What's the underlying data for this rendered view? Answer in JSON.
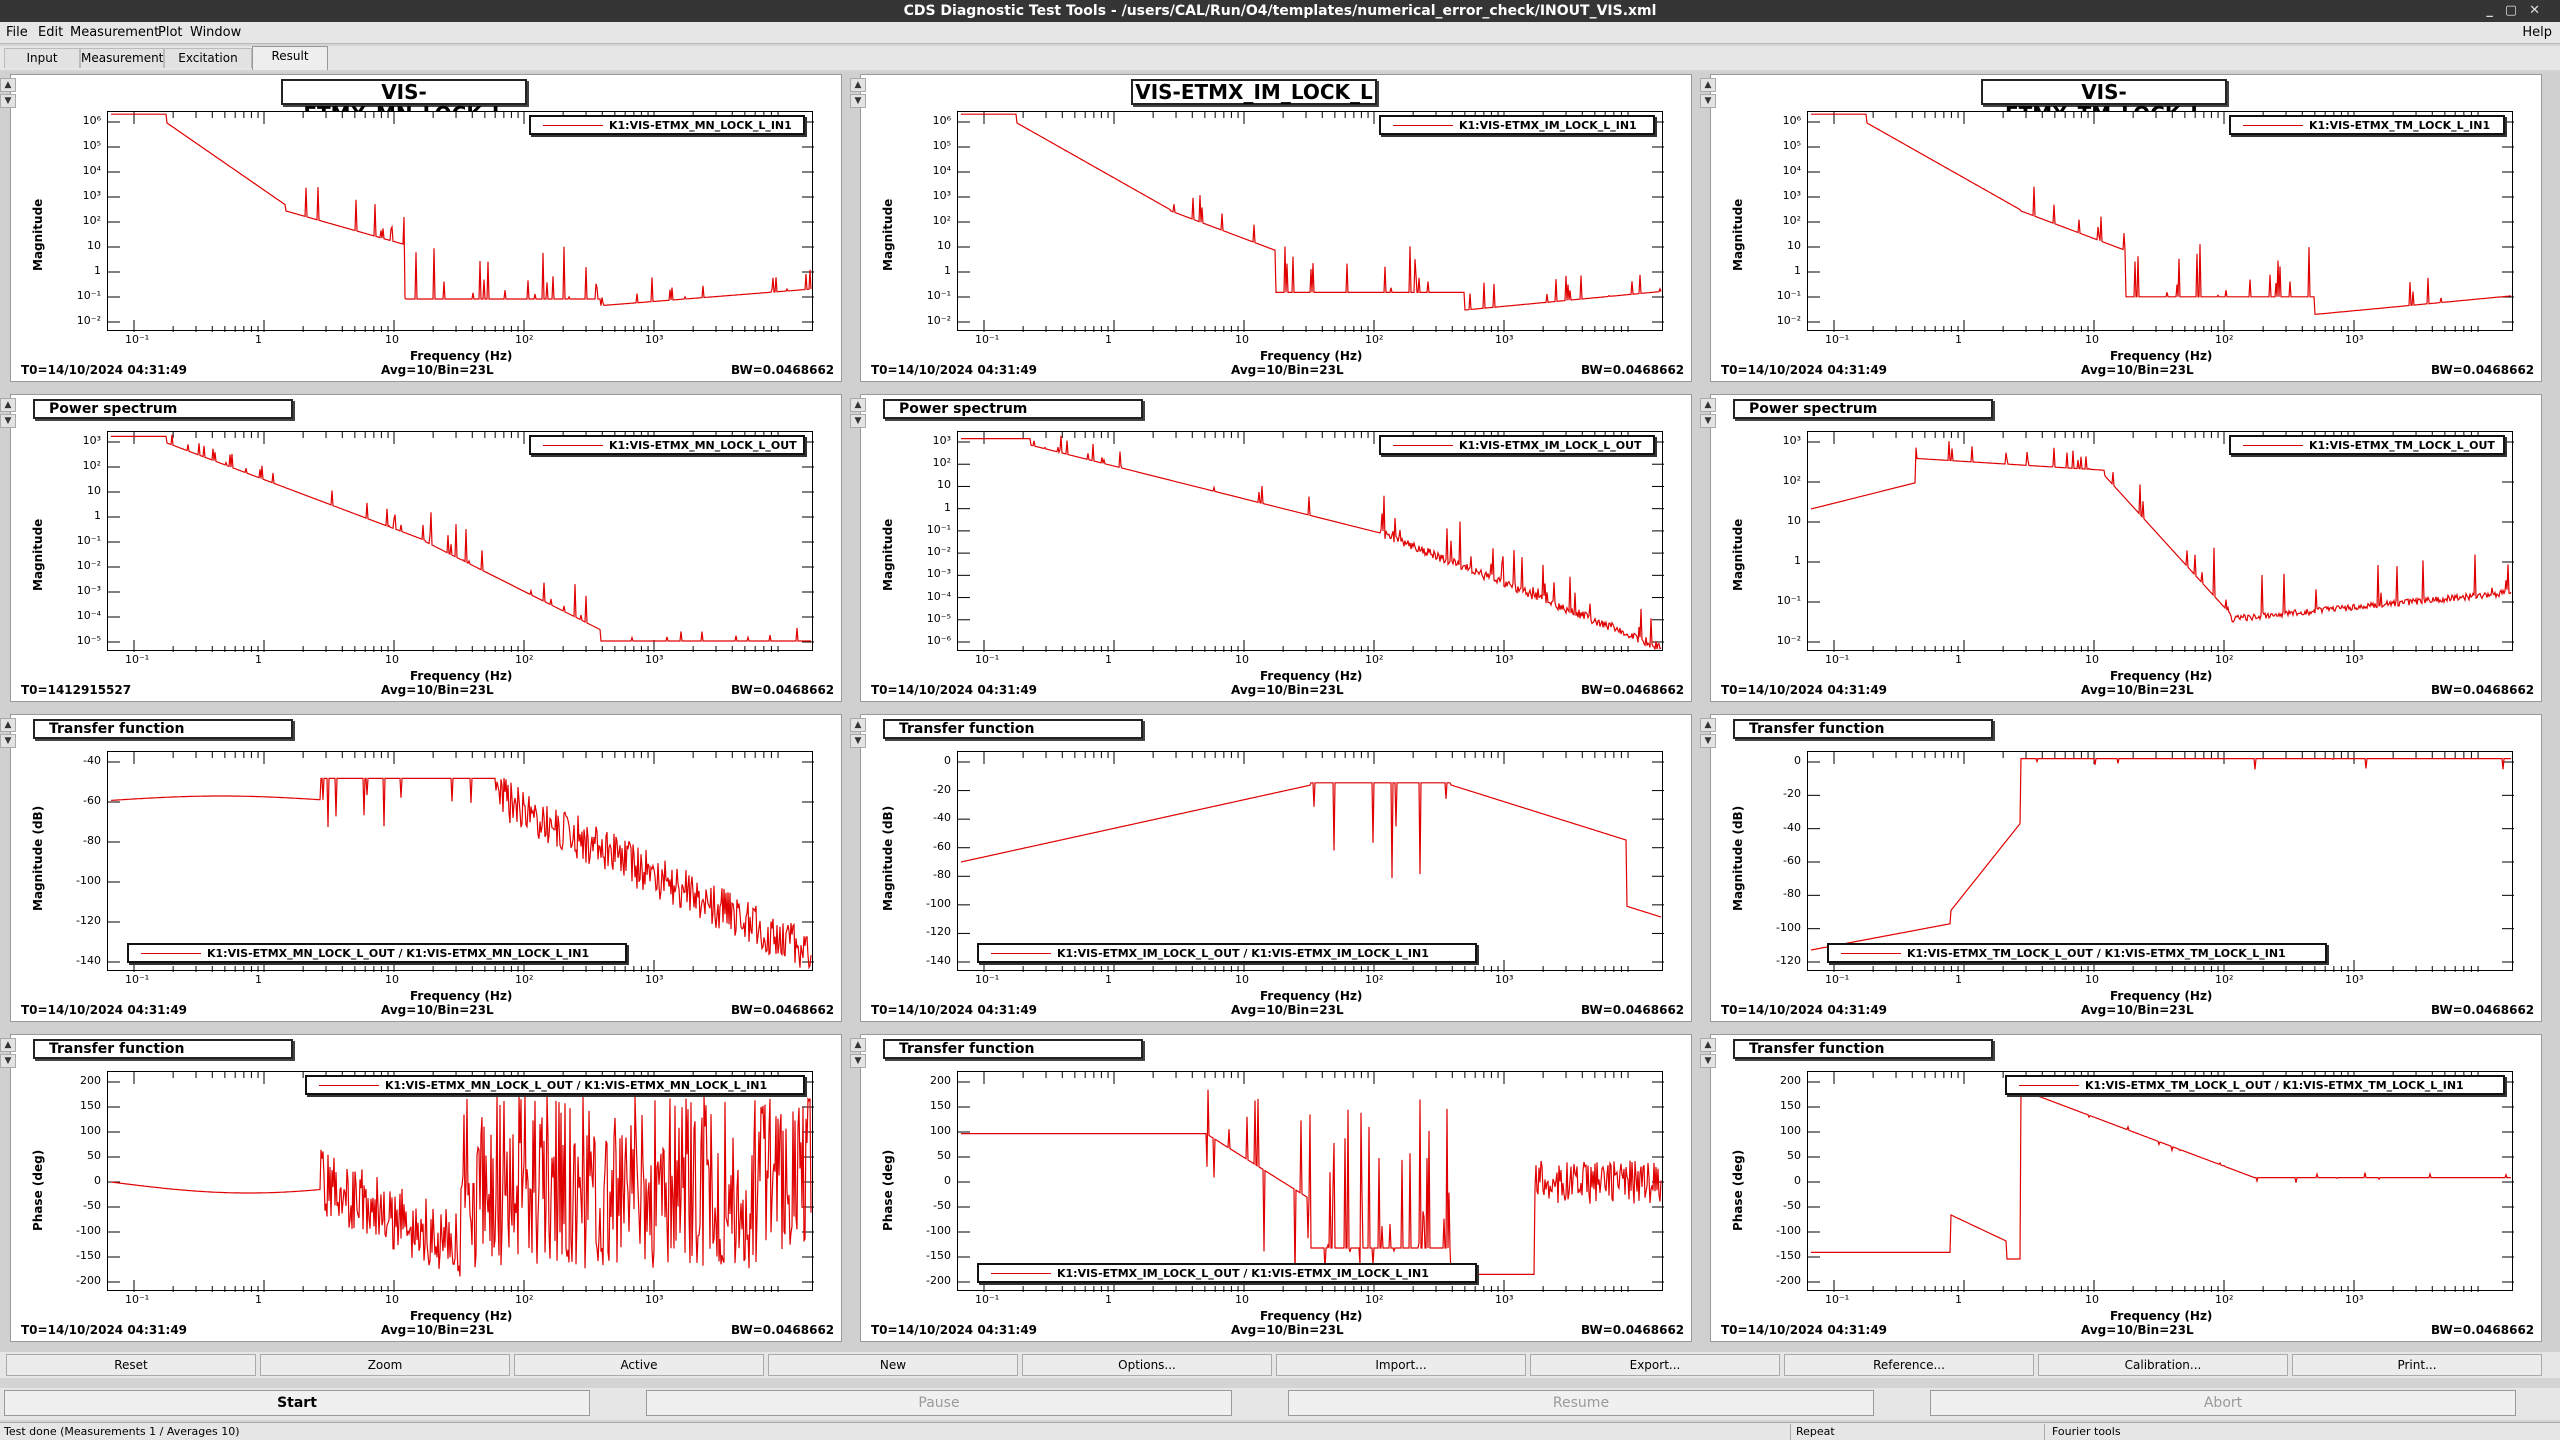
{
  "window": {
    "title": "CDS Diagnostic Test Tools - /users/CAL/Run/O4/templates/numerical_error_check/INOUT_VIS.xml"
  },
  "menu": {
    "items": [
      "File",
      "Edit",
      "Measurement",
      "Plot",
      "Window"
    ],
    "help": "Help"
  },
  "tabs": [
    "Input",
    "Measurement",
    "Excitation",
    "Result"
  ],
  "active_tab": "Result",
  "x_ticks": [
    "10⁻¹",
    "1",
    "10",
    "10²",
    "10³"
  ],
  "x_label": "Frequency (Hz)",
  "colors": {
    "trace": "#e00000",
    "background": "#ffffff",
    "frame": "#000000"
  },
  "panels": [
    {
      "row": 0,
      "col": 0,
      "title": "VIS-ETMX_MN_LOCK_L",
      "legend": "K1:VIS-ETMX_MN_LOCK_L_IN1",
      "ylabel": "Magnitude",
      "yticks": [
        "10⁶",
        "10⁵",
        "10⁴",
        "10³",
        "10²",
        "10",
        "1",
        "10⁻¹",
        "10⁻²"
      ],
      "t0": "T0=14/10/2024 04:31:49",
      "avg": "Avg=10/Bin=23L",
      "bw": "BW=0.0468662"
    },
    {
      "row": 0,
      "col": 1,
      "title": "VIS-ETMX_IM_LOCK_L",
      "legend": "K1:VIS-ETMX_IM_LOCK_L_IN1",
      "ylabel": "Magnitude",
      "yticks": [
        "10⁶",
        "10⁵",
        "10⁴",
        "10³",
        "10²",
        "10",
        "1",
        "10⁻¹",
        "10⁻²"
      ],
      "t0": "T0=14/10/2024 04:31:49",
      "avg": "Avg=10/Bin=23L",
      "bw": "BW=0.0468662"
    },
    {
      "row": 0,
      "col": 2,
      "title": "VIS-ETMX_TM_LOCK_L",
      "legend": "K1:VIS-ETMX_TM_LOCK_L_IN1",
      "ylabel": "Magnitude",
      "yticks": [
        "10⁶",
        "10⁵",
        "10⁴",
        "10³",
        "10²",
        "10",
        "1",
        "10⁻¹",
        "10⁻²"
      ],
      "t0": "T0=14/10/2024 04:31:49",
      "avg": "Avg=10/Bin=23L",
      "bw": "BW=0.0468662"
    },
    {
      "row": 1,
      "col": 0,
      "title": "Power spectrum",
      "legend": "K1:VIS-ETMX_MN_LOCK_L_OUT",
      "ylabel": "Magnitude",
      "yticks": [
        "10³",
        "10²",
        "10",
        "1",
        "10⁻¹",
        "10⁻²",
        "10⁻³",
        "10⁻⁴",
        "10⁻⁵"
      ],
      "t0": "T0=1412915527",
      "avg": "Avg=10/Bin=23L",
      "bw": "BW=0.0468662"
    },
    {
      "row": 1,
      "col": 1,
      "title": "Power spectrum",
      "legend": "K1:VIS-ETMX_IM_LOCK_L_OUT",
      "ylabel": "Magnitude",
      "yticks": [
        "10³",
        "10²",
        "10",
        "1",
        "10⁻¹",
        "10⁻²",
        "10⁻³",
        "10⁻⁴",
        "10⁻⁵",
        "10⁻⁶"
      ],
      "t0": "T0=14/10/2024 04:31:49",
      "avg": "Avg=10/Bin=23L",
      "bw": "BW=0.0468662"
    },
    {
      "row": 1,
      "col": 2,
      "title": "Power spectrum",
      "legend": "K1:VIS-ETMX_TM_LOCK_L_OUT",
      "ylabel": "Magnitude",
      "yticks": [
        "10³",
        "10²",
        "10",
        "1",
        "10⁻¹",
        "10⁻²"
      ],
      "t0": "T0=14/10/2024 04:31:49",
      "avg": "Avg=10/Bin=23L",
      "bw": "BW=0.0468662"
    },
    {
      "row": 2,
      "col": 0,
      "title": "Transfer function",
      "legend": "K1:VIS-ETMX_MN_LOCK_L_OUT / K1:VIS-ETMX_MN_LOCK_L_IN1",
      "ylabel": "Magnitude (dB)",
      "yticks": [
        "-40",
        "-60",
        "-80",
        "-100",
        "-120",
        "-140"
      ],
      "t0": "T0=14/10/2024 04:31:49",
      "avg": "Avg=10/Bin=23L",
      "bw": "BW=0.0468662"
    },
    {
      "row": 2,
      "col": 1,
      "title": "Transfer function",
      "legend": "K1:VIS-ETMX_IM_LOCK_L_OUT / K1:VIS-ETMX_IM_LOCK_L_IN1",
      "ylabel": "Magnitude (dB)",
      "yticks": [
        "0",
        "-20",
        "-40",
        "-60",
        "-80",
        "-100",
        "-120",
        "-140"
      ],
      "t0": "T0=14/10/2024 04:31:49",
      "avg": "Avg=10/Bin=23L",
      "bw": "BW=0.0468662"
    },
    {
      "row": 2,
      "col": 2,
      "title": "Transfer function",
      "legend": "K1:VIS-ETMX_TM_LOCK_L_OUT / K1:VIS-ETMX_TM_LOCK_L_IN1",
      "ylabel": "Magnitude (dB)",
      "yticks": [
        "0",
        "-20",
        "-40",
        "-60",
        "-80",
        "-100",
        "-120"
      ],
      "t0": "T0=14/10/2024 04:31:49",
      "avg": "Avg=10/Bin=23L",
      "bw": "BW=0.0468662"
    },
    {
      "row": 3,
      "col": 0,
      "title": "Transfer function",
      "legend": "K1:VIS-ETMX_MN_LOCK_L_OUT / K1:VIS-ETMX_MN_LOCK_L_IN1",
      "ylabel": "Phase (deg)",
      "yticks": [
        "200",
        "150",
        "100",
        "50",
        "0",
        "-50",
        "-100",
        "-150",
        "-200"
      ],
      "t0": "T0=14/10/2024 04:31:49",
      "avg": "Avg=10/Bin=23L",
      "bw": "BW=0.0468662"
    },
    {
      "row": 3,
      "col": 1,
      "title": "Transfer function",
      "legend": "K1:VIS-ETMX_IM_LOCK_L_OUT / K1:VIS-ETMX_IM_LOCK_L_IN1",
      "ylabel": "Phase (deg)",
      "yticks": [
        "200",
        "150",
        "100",
        "50",
        "0",
        "-50",
        "-100",
        "-150",
        "-200"
      ],
      "t0": "T0=14/10/2024 04:31:49",
      "avg": "Avg=10/Bin=23L",
      "bw": "BW=0.0468662"
    },
    {
      "row": 3,
      "col": 2,
      "title": "Transfer function",
      "legend": "K1:VIS-ETMX_TM_LOCK_L_OUT / K1:VIS-ETMX_TM_LOCK_L_IN1",
      "ylabel": "Phase (deg)",
      "yticks": [
        "200",
        "150",
        "100",
        "50",
        "0",
        "-50",
        "-100",
        "-150",
        "-200"
      ],
      "t0": "T0=14/10/2024 04:31:49",
      "avg": "Avg=10/Bin=23L",
      "bw": "BW=0.0468662"
    }
  ],
  "buttons_row1": [
    "Reset",
    "Zoom",
    "Active",
    "New",
    "Options...",
    "Import...",
    "Export...",
    "Reference...",
    "Calibration...",
    "Print..."
  ],
  "buttons_row2": [
    {
      "label": "Start",
      "enabled": true
    },
    {
      "label": "Pause",
      "enabled": false
    },
    {
      "label": "Resume",
      "enabled": false
    },
    {
      "label": "Abort",
      "enabled": false
    }
  ],
  "status": {
    "left": "Test done (Measurements 1 / Averages 10)",
    "mid": "Repeat",
    "right": "Fourier tools"
  }
}
